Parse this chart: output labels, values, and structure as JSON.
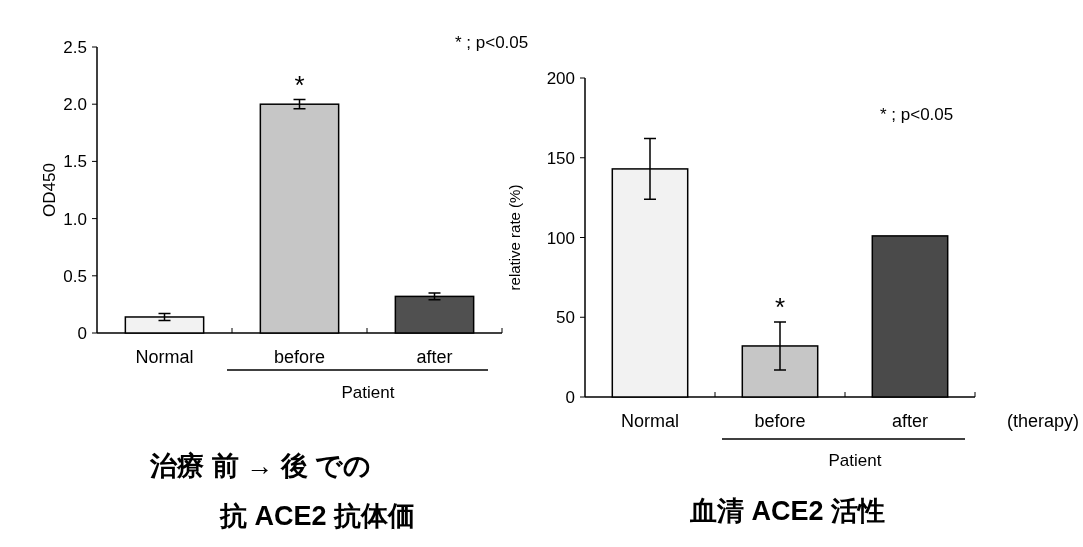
{
  "chart_data": [
    {
      "type": "bar",
      "title": "治療 前 → 後 での",
      "subtitle": "抗 ACE2 抗体価",
      "ylabel": "OD450",
      "categories": [
        "Normal",
        "before",
        "after"
      ],
      "values": [
        0.14,
        2.0,
        0.32
      ],
      "errors": [
        0.03,
        0.04,
        0.03
      ],
      "colors": [
        "#f2f2f2",
        "#c6c6c6",
        "#505050"
      ],
      "ylim": [
        0,
        2.5
      ],
      "yticks": [
        0,
        {
          "value": 0.5,
          "label": "0.5"
        },
        {
          "value": 1,
          "label": "1.0"
        },
        {
          "value": 1.5,
          "label": "1.5"
        },
        {
          "value": 2,
          "label": "2.0"
        },
        {
          "value": 2.5,
          "label": "2.5"
        }
      ],
      "annotations": [
        {
          "text": "*",
          "x": "before",
          "y": 2.04
        },
        "* ; p<0.05",
        "Patient"
      ]
    },
    {
      "type": "bar",
      "title": "血清 ACE2 活性",
      "ylabel": "relative rate (%)",
      "categories": [
        "Normal",
        "before",
        "after"
      ],
      "values": [
        143,
        32,
        101
      ],
      "errors": [
        19,
        15,
        null
      ],
      "colors": [
        "#f2f2f2",
        "#c6c6c6",
        "#4a4a4a"
      ],
      "ylim": [
        0,
        200
      ],
      "yticks": [
        0,
        50,
        100,
        150,
        200
      ],
      "annotations": [
        {
          "text": "*",
          "x": "before",
          "y": 47
        },
        "* ; p<0.05",
        "Patient",
        "(therapy)"
      ]
    }
  ]
}
